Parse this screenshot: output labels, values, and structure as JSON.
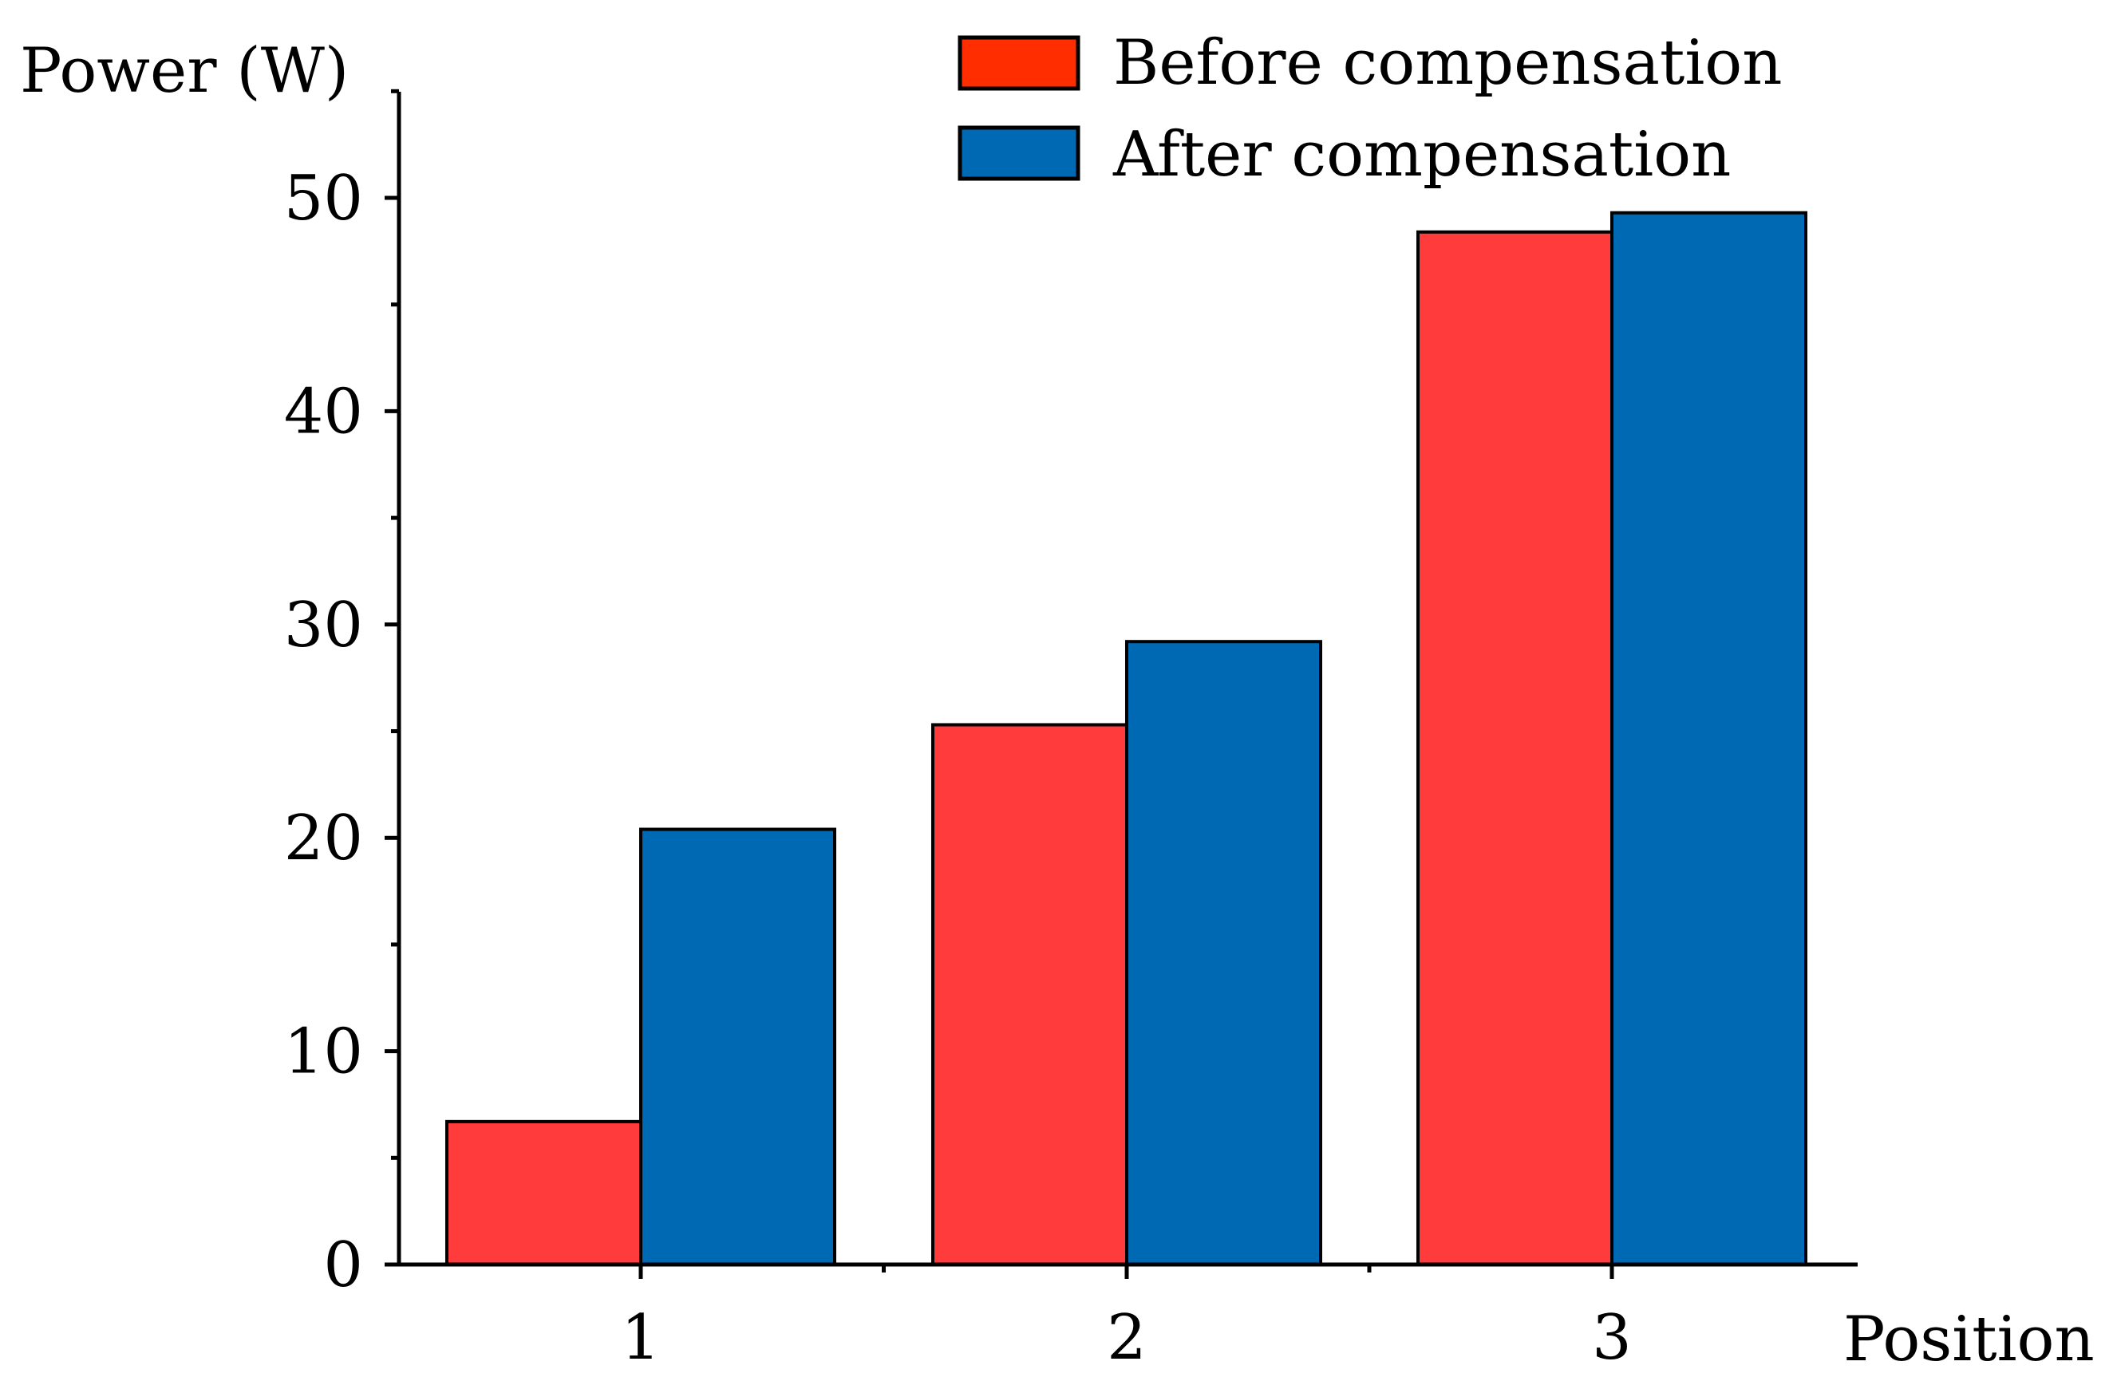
{
  "chart_data": {
    "type": "bar",
    "categories": [
      "1",
      "2",
      "3"
    ],
    "series": [
      {
        "name": "Before compensation",
        "values": [
          6.7,
          25.3,
          48.4
        ],
        "color": "#ff3b3b"
      },
      {
        "name": "After compensation",
        "values": [
          20.4,
          29.2,
          49.3
        ],
        "color": "#0069b4"
      }
    ],
    "legend_swatch_colors": [
      "#ff2d00",
      "#0069b4"
    ],
    "xlabel": "Position",
    "ylabel": "Power (W)",
    "ylim": [
      0,
      55
    ],
    "yticks": [
      0,
      10,
      20,
      30,
      40,
      50
    ],
    "grid": false,
    "legend_position": "top-right"
  }
}
